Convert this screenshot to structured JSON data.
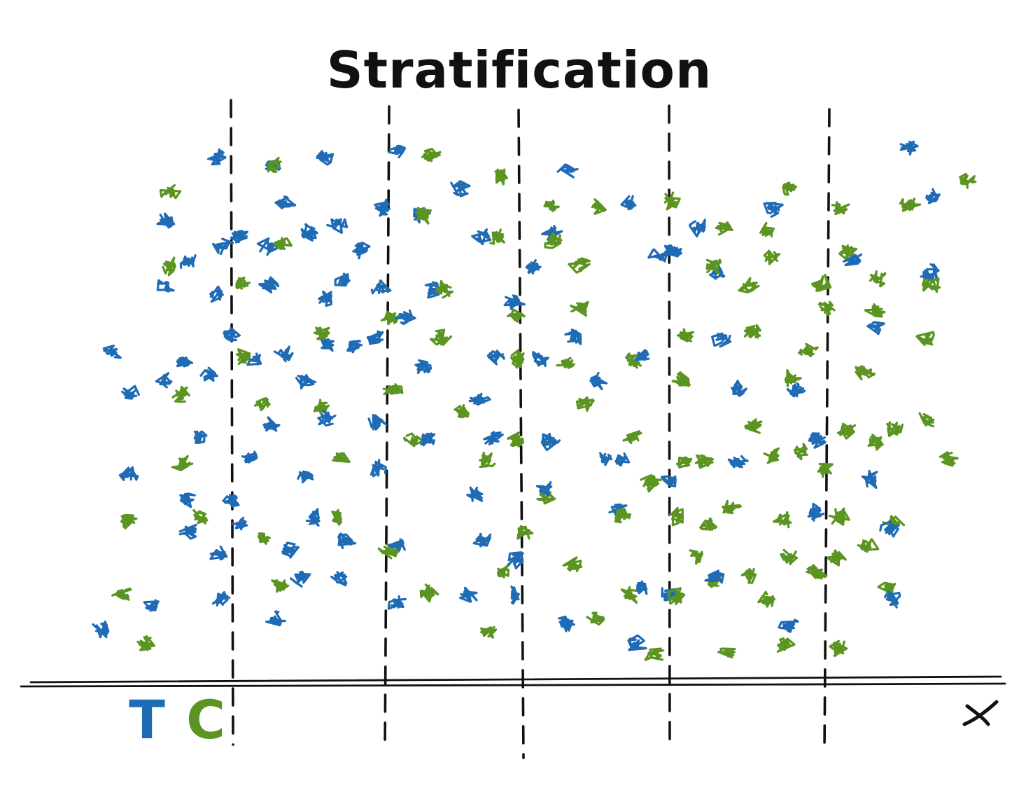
{
  "title": "Stratification",
  "x_axis_label": "x",
  "legend": {
    "treatment_letter": "T",
    "control_letter": "C"
  },
  "colors": {
    "treatment": "#1f6bb5",
    "control": "#5b9420",
    "ink": "#111111"
  },
  "strata_count": 6
}
